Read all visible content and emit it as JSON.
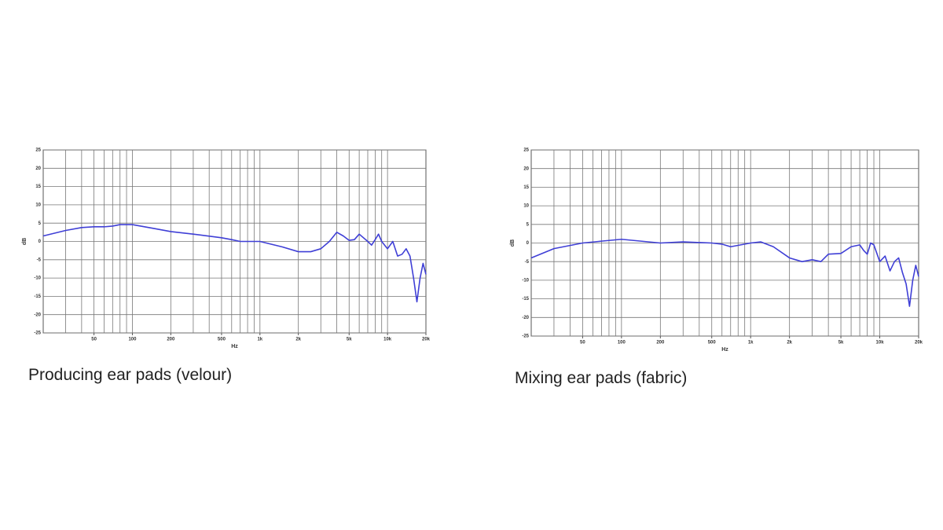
{
  "chart_data": [
    {
      "type": "line",
      "title": "Producing ear pads (velour)",
      "x_label": "Hz",
      "y_label": "dB",
      "log_x": true,
      "grid": true,
      "xlim": [
        20,
        20000
      ],
      "ylim": [
        -25,
        25
      ],
      "yticks": [
        -25,
        -20,
        -15,
        -10,
        -5,
        0,
        5,
        10,
        15,
        20,
        25
      ],
      "xticks": [
        50,
        100,
        200,
        500,
        {
          "value": 1000,
          "label": "1k"
        },
        {
          "value": 2000,
          "label": "2k"
        },
        {
          "value": 5000,
          "label": "5k"
        },
        {
          "value": 10000,
          "label": "10k"
        },
        {
          "value": 20000,
          "label": "20k"
        }
      ],
      "xgrid": [
        30,
        40,
        50,
        60,
        70,
        80,
        90,
        100,
        200,
        300,
        400,
        500,
        600,
        700,
        800,
        900,
        1000,
        2000,
        3000,
        4000,
        5000,
        6000,
        7000,
        8000,
        9000,
        10000
      ],
      "x": [
        20,
        30,
        40,
        50,
        60,
        70,
        80,
        100,
        150,
        200,
        300,
        500,
        600,
        700,
        1000,
        1500,
        2000,
        2500,
        3000,
        3500,
        4000,
        4500,
        5000,
        5500,
        6000,
        7000,
        7500,
        8000,
        8500,
        9000,
        10000,
        11000,
        12000,
        13000,
        14000,
        15000,
        16000,
        17000,
        18000,
        19000,
        20000
      ],
      "series": [
        {
          "color": "#3f3fd6",
          "values": [
            1.5,
            3,
            3.8,
            4,
            4,
            4.2,
            4.6,
            4.6,
            3.5,
            2.7,
            2,
            1,
            0.5,
            0,
            0,
            -1.5,
            -2.8,
            -2.8,
            -2,
            0,
            2.5,
            1.5,
            0.3,
            0.5,
            2,
            0,
            -1,
            0.5,
            2,
            0,
            -2,
            0,
            -4,
            -3.5,
            -2,
            -4,
            -10,
            -16.5,
            -10,
            -6,
            -9
          ]
        }
      ]
    },
    {
      "type": "line",
      "title": "Mixing ear pads (fabric)",
      "x_label": "Hz",
      "y_label": "dB",
      "log_x": true,
      "grid": true,
      "xlim": [
        20,
        20000
      ],
      "ylim": [
        -25,
        25
      ],
      "yticks": [
        -25,
        -20,
        -15,
        -10,
        -5,
        0,
        5,
        10,
        15,
        20,
        25
      ],
      "xticks": [
        50,
        100,
        200,
        500,
        {
          "value": 1000,
          "label": "1k"
        },
        {
          "value": 2000,
          "label": "2k"
        },
        {
          "value": 5000,
          "label": "5k"
        },
        {
          "value": 10000,
          "label": "10k"
        },
        {
          "value": 20000,
          "label": "20k"
        }
      ],
      "xgrid": [
        30,
        40,
        50,
        60,
        70,
        80,
        90,
        100,
        200,
        300,
        400,
        500,
        600,
        700,
        800,
        900,
        1000,
        2000,
        3000,
        4000,
        5000,
        6000,
        7000,
        8000,
        9000,
        10000
      ],
      "x": [
        20,
        30,
        50,
        70,
        100,
        200,
        300,
        500,
        600,
        700,
        1000,
        1200,
        1500,
        2000,
        2500,
        3000,
        3500,
        4000,
        5000,
        6000,
        7000,
        7500,
        8000,
        8500,
        9000,
        10000,
        11000,
        12000,
        13000,
        14000,
        15000,
        16000,
        17000,
        18000,
        19000,
        20000
      ],
      "series": [
        {
          "color": "#3f3fd6",
          "values": [
            -4,
            -1.5,
            0,
            0.5,
            1,
            0,
            0.3,
            0,
            -0.3,
            -1,
            0,
            0.3,
            -1,
            -4,
            -5,
            -4.5,
            -5,
            -3,
            -2.8,
            -1,
            -0.5,
            -2,
            -3,
            0,
            -0.5,
            -5,
            -3.5,
            -7.5,
            -5,
            -4,
            -8,
            -11,
            -17,
            -10,
            -6,
            -9
          ]
        }
      ]
    }
  ]
}
